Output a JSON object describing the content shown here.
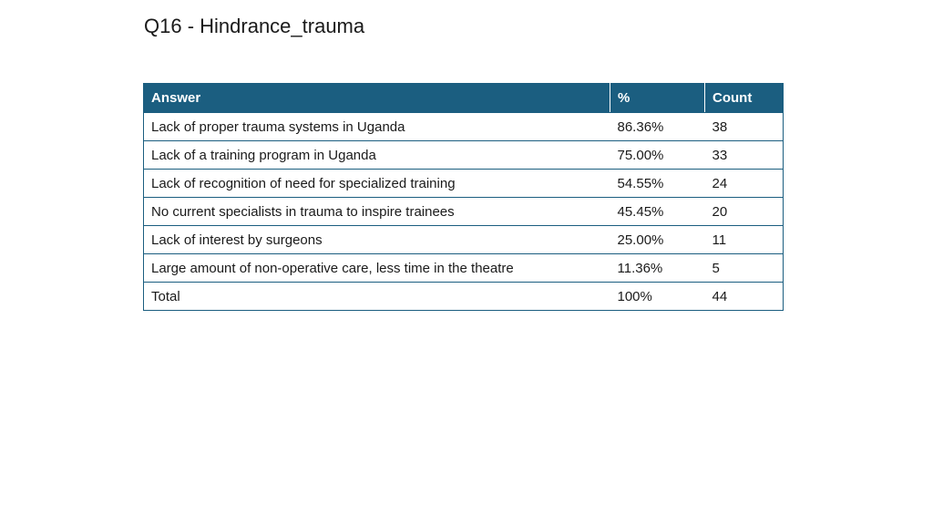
{
  "title": "Q16 - Hindrance_trauma",
  "table": {
    "headers": {
      "answer": "Answer",
      "percent": "%",
      "count": "Count"
    },
    "rows": [
      {
        "answer": "Lack of proper trauma systems in Uganda",
        "percent": "86.36%",
        "count": "38"
      },
      {
        "answer": "Lack of a training program in Uganda",
        "percent": "75.00%",
        "count": "33"
      },
      {
        "answer": "Lack of recognition of need for specialized training",
        "percent": "54.55%",
        "count": "24"
      },
      {
        "answer": "No current specialists in trauma to inspire trainees",
        "percent": "45.45%",
        "count": "20"
      },
      {
        "answer": "Lack of interest by surgeons",
        "percent": "25.00%",
        "count": "11"
      },
      {
        "answer": "Large amount of non-operative care, less time in the theatre",
        "percent": "11.36%",
        "count": "5"
      },
      {
        "answer": "Total",
        "percent": "100%",
        "count": "44"
      }
    ]
  },
  "colors": {
    "header_bg": "#1b5e80",
    "header_text": "#ffffff",
    "border": "#1b5e80"
  }
}
